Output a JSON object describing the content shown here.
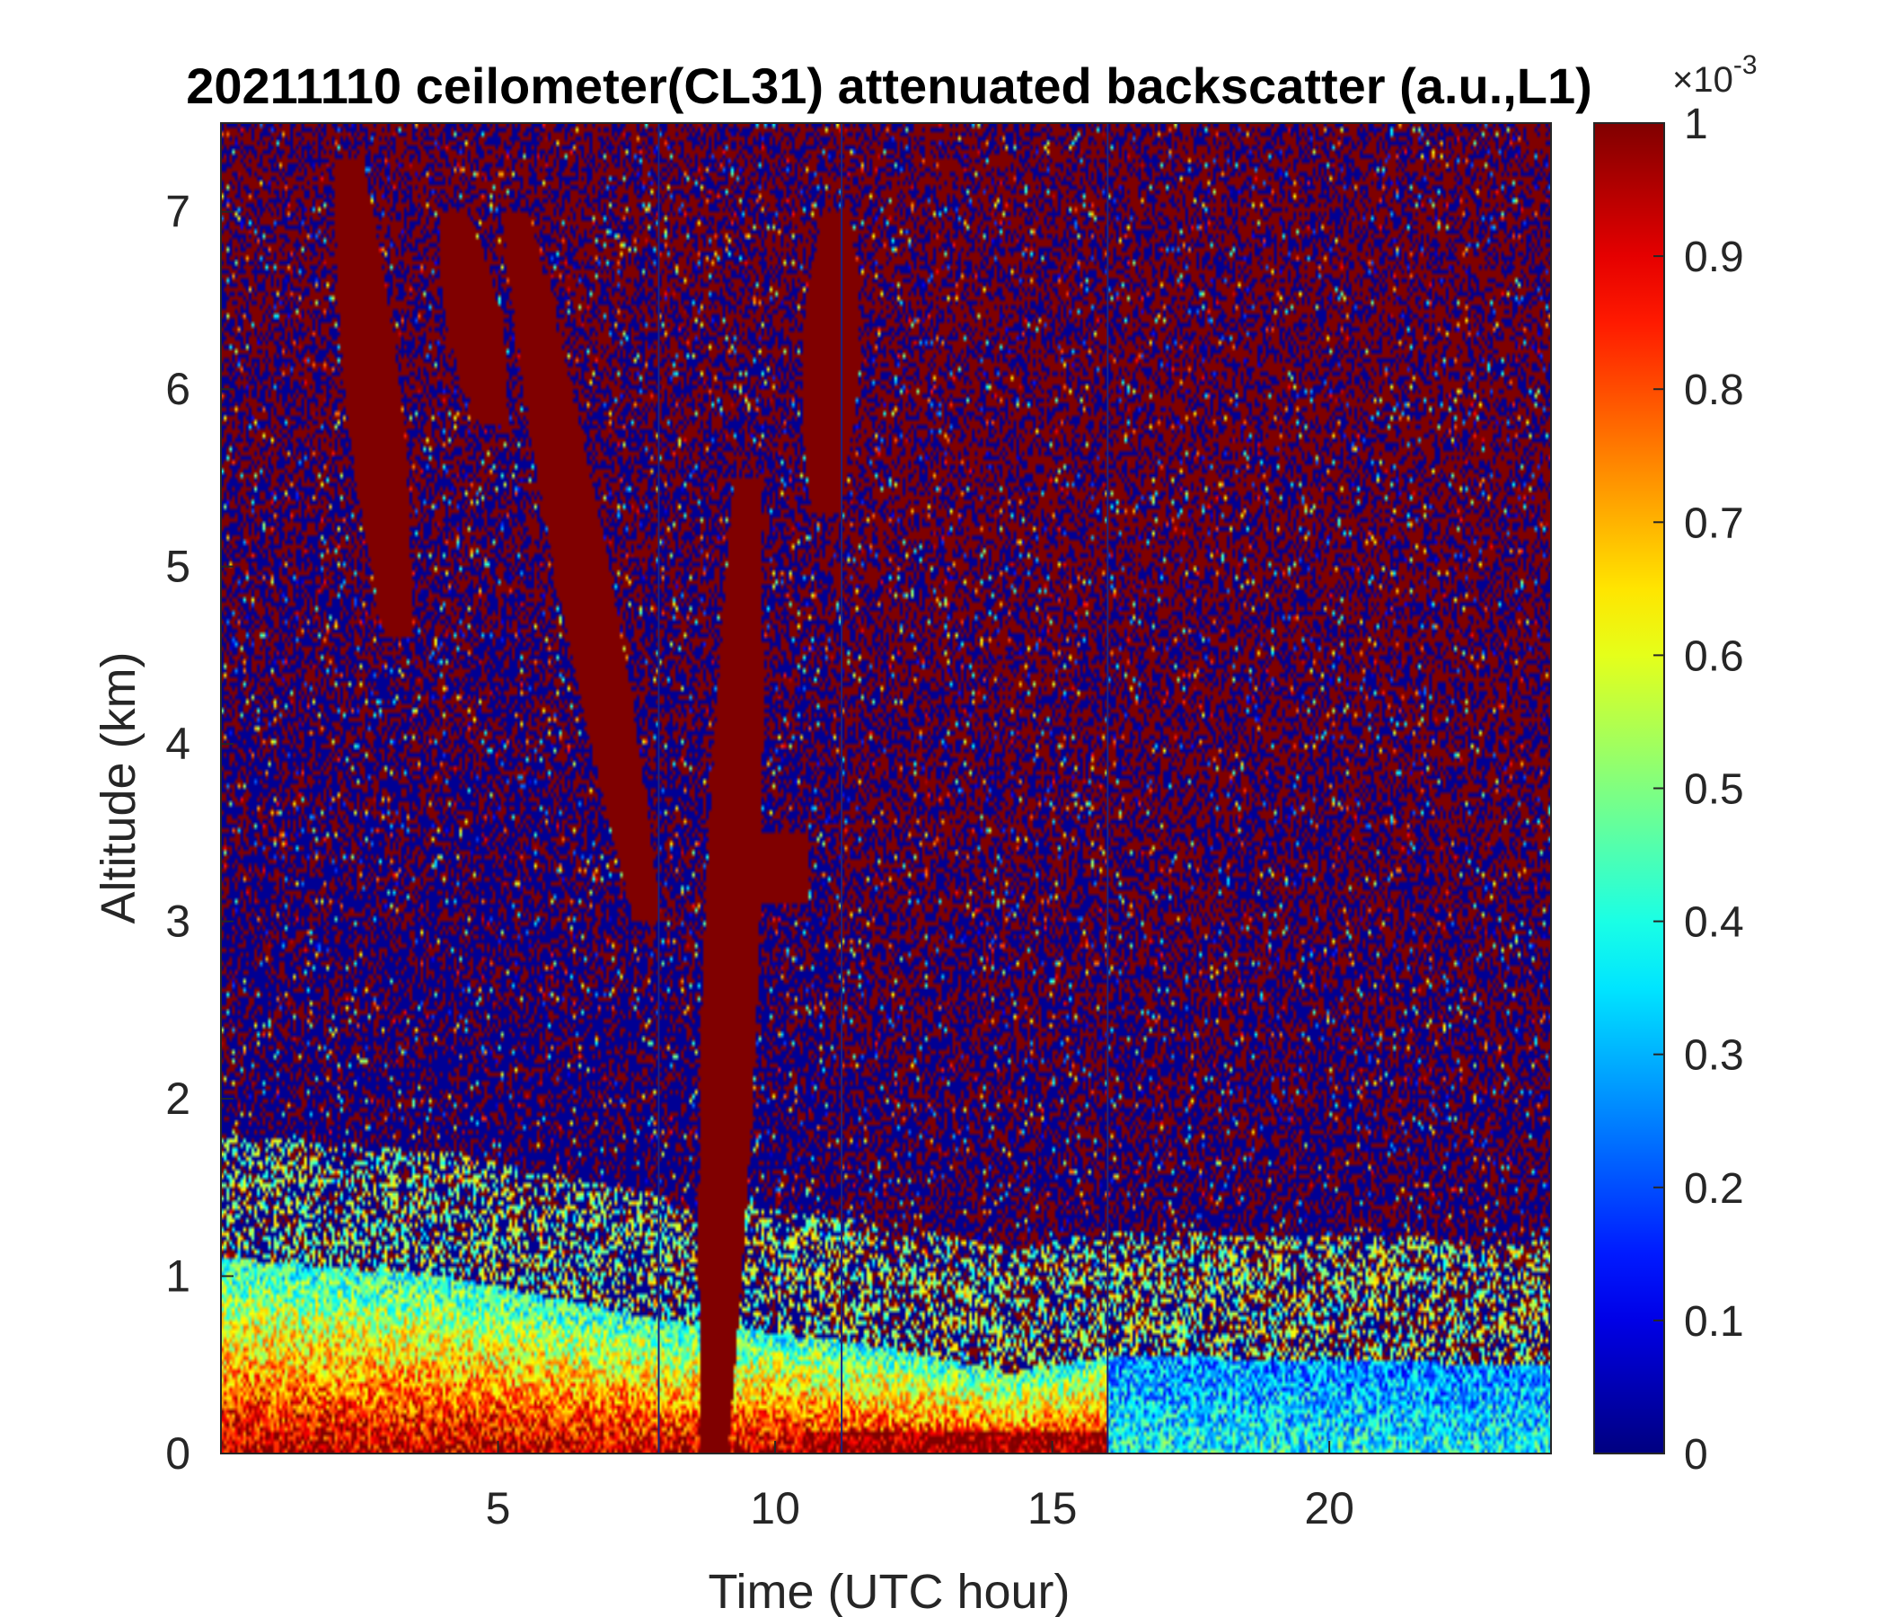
{
  "chart_data": {
    "type": "heatmap",
    "title": "20211110 ceilometer(CL31) attenuated backscatter (a.u.,L1)",
    "xlabel": "Time (UTC hour)",
    "ylabel": "Altitude (km)",
    "xlim": [
      0,
      24
    ],
    "ylim": [
      0,
      7.5
    ],
    "xticks": [
      5,
      10,
      15,
      20
    ],
    "yticks": [
      0,
      1,
      2,
      3,
      4,
      5,
      6,
      7
    ],
    "colormap": "jet",
    "colorbar": {
      "clim": [
        0,
        1
      ],
      "exponent_label": "×10",
      "exponent_power": "-3",
      "ticks": [
        0,
        0.1,
        0.2,
        0.3,
        0.4,
        0.5,
        0.6,
        0.7,
        0.8,
        0.9,
        1
      ],
      "tick_labels": [
        "0",
        "0.1",
        "0.2",
        "0.3",
        "0.4",
        "0.5",
        "0.6",
        "0.7",
        "0.8",
        "0.9",
        "1"
      ]
    },
    "features": {
      "boundary_layer_top_km": [
        {
          "hour": 0,
          "top": 1.1
        },
        {
          "hour": 4,
          "top": 1.0
        },
        {
          "hour": 8,
          "top": 0.75
        },
        {
          "hour": 12,
          "top": 0.6
        },
        {
          "hour": 14.3,
          "top": 0.45
        },
        {
          "hour": 16,
          "top": 0.55
        },
        {
          "hour": 24,
          "top": 0.5
        }
      ],
      "high_signal_streaks": [
        {
          "hour_top": 2.3,
          "hour_bottom": 3.2,
          "alt_top": 7.3,
          "alt_bottom": 4.6
        },
        {
          "hour_top": 4.2,
          "hour_bottom": 4.9,
          "alt_top": 7.0,
          "alt_bottom": 5.8
        },
        {
          "hour_top": 5.3,
          "hour_bottom": 7.7,
          "alt_top": 7.0,
          "alt_bottom": 3.0
        },
        {
          "hour_top": 9.5,
          "hour_bottom": 8.9,
          "alt_top": 5.5,
          "alt_bottom": 0.0
        },
        {
          "hour_top": 11.1,
          "hour_bottom": 10.9,
          "alt_top": 7.0,
          "alt_bottom": 5.3
        }
      ],
      "cloud_patch": {
        "hour": 10,
        "alt": 3.3
      },
      "vertical_lines_hour": [
        7.9,
        11.2,
        16.0
      ]
    }
  }
}
